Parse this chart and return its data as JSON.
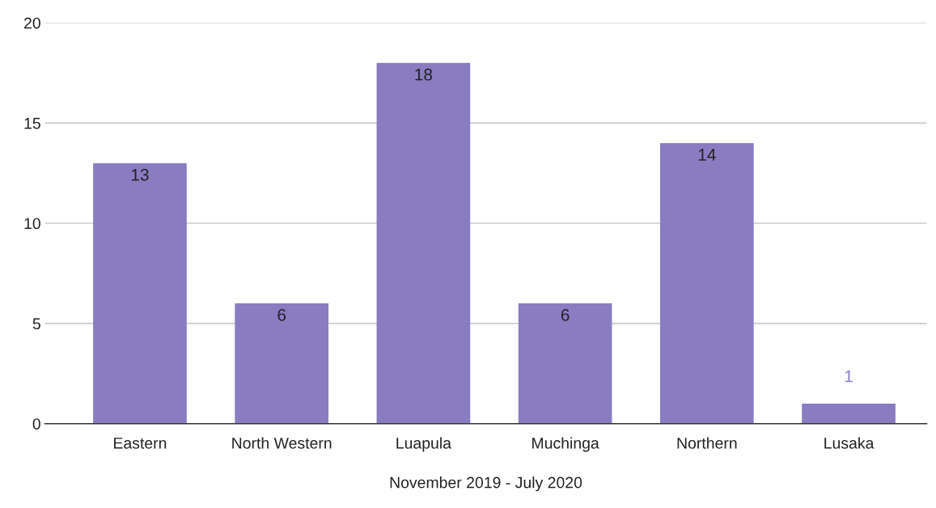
{
  "chart_data": {
    "type": "bar",
    "xlabel": "November 2019 - July 2020",
    "categories": [
      "Eastern",
      "North Western",
      "Luapula",
      "Muchinga",
      "Northern",
      "Lusaka"
    ],
    "values": [
      13,
      6,
      18,
      6,
      14,
      1
    ],
    "color": "#8a7cc1",
    "ylim": [
      0,
      20
    ],
    "yticks": [
      0,
      5,
      10,
      15,
      20
    ],
    "grid": "y",
    "data_labels": true
  }
}
